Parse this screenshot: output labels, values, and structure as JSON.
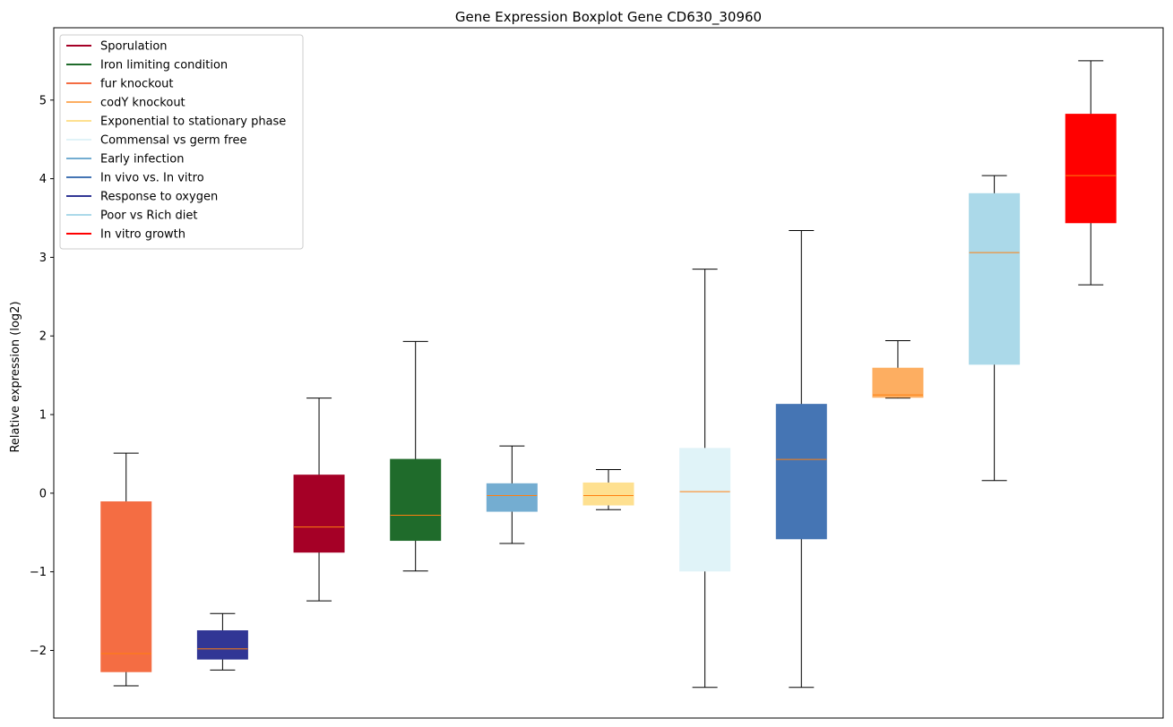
{
  "chart_data": {
    "type": "boxplot",
    "title": "Gene Expression Boxplot Gene CD630_30960",
    "xlabel": "",
    "ylabel": "Relative expression (log2)",
    "ylim": [
      -2.86,
      5.92
    ],
    "yticks": [
      -2,
      -1,
      0,
      1,
      2,
      3,
      4,
      5
    ],
    "legend_position": "top-left",
    "legend": [
      {
        "name": "Sporulation",
        "color": "#a50026"
      },
      {
        "name": "Iron limiting condition",
        "color": "#1f6b2b"
      },
      {
        "name": "fur knockout",
        "color": "#f46d43"
      },
      {
        "name": "codY knockout",
        "color": "#fdae61"
      },
      {
        "name": "Exponential to stationary phase",
        "color": "#fee090"
      },
      {
        "name": "Commensal vs germ free",
        "color": "#e0f3f8"
      },
      {
        "name": "Early infection",
        "color": "#74add1"
      },
      {
        "name": "In vivo vs. In vitro",
        "color": "#4575b4"
      },
      {
        "name": "Response to oxygen",
        "color": "#313695"
      },
      {
        "name": "Poor vs Rich diet",
        "color": "#abd9e9"
      },
      {
        "name": "In vitro growth",
        "color": "#ff0000"
      }
    ],
    "boxes": [
      {
        "group": "fur knockout",
        "color": "#f46d43",
        "whislo": -2.45,
        "q1": -2.27,
        "med": -2.04,
        "q3": -0.11,
        "whishi": 0.51
      },
      {
        "group": "Response to oxygen",
        "color": "#313695",
        "whislo": -2.25,
        "q1": -2.11,
        "med": -1.98,
        "q3": -1.75,
        "whishi": -1.53
      },
      {
        "group": "Sporulation",
        "color": "#a50026",
        "whislo": -1.37,
        "q1": -0.75,
        "med": -0.43,
        "q3": 0.23,
        "whishi": 1.21
      },
      {
        "group": "Iron limiting condition",
        "color": "#1f6b2b",
        "whislo": -0.99,
        "q1": -0.6,
        "med": -0.28,
        "q3": 0.43,
        "whishi": 1.93
      },
      {
        "group": "Early infection",
        "color": "#74add1",
        "whislo": -0.64,
        "q1": -0.23,
        "med": -0.03,
        "q3": 0.12,
        "whishi": 0.6
      },
      {
        "group": "Exponential to stationary phase",
        "color": "#fee090",
        "whislo": -0.21,
        "q1": -0.15,
        "med": -0.03,
        "q3": 0.13,
        "whishi": 0.3
      },
      {
        "group": "Commensal vs germ free",
        "color": "#e0f3f8",
        "whislo": -2.47,
        "q1": -0.99,
        "med": 0.02,
        "q3": 0.57,
        "whishi": 2.85
      },
      {
        "group": "In vivo vs. In vitro",
        "color": "#4575b4",
        "whislo": -2.47,
        "q1": -0.58,
        "med": 0.43,
        "q3": 1.13,
        "whishi": 3.34
      },
      {
        "group": "codY knockout",
        "color": "#fdae61",
        "whislo": 1.21,
        "q1": 1.22,
        "med": 1.25,
        "q3": 1.59,
        "whishi": 1.94
      },
      {
        "group": "Poor vs Rich diet",
        "color": "#abd9e9",
        "whislo": 0.16,
        "q1": 1.64,
        "med": 3.06,
        "q3": 3.81,
        "whishi": 4.04
      },
      {
        "group": "In vitro growth",
        "color": "#ff0000",
        "whislo": 2.65,
        "q1": 3.44,
        "med": 4.04,
        "q3": 4.82,
        "whishi": 5.5
      }
    ]
  }
}
